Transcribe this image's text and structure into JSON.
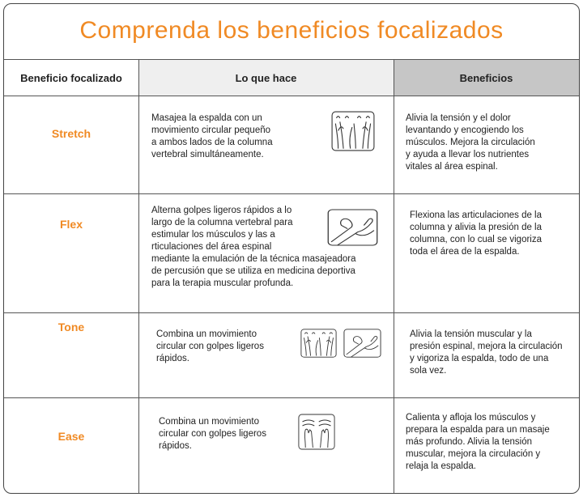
{
  "header": {
    "title": "Comprenda los beneficios focalizados"
  },
  "table": {
    "columns": [
      "Beneficio focalizado",
      "Lo que hace",
      "Beneficios"
    ],
    "rows": [
      {
        "benefit": "Stretch",
        "does": [
          "Masajea la espalda con un",
          "movimiento circular pequeño",
          "a ambos lados de la columna",
          "vertebral simultáneamente."
        ],
        "benefits": [
          "Alivia la tensión y el dolor",
          "levantando y encogiendo los",
          "músculos. Mejora la circulación",
          "y ayuda a llevar los nutrientes",
          "vitales al área espinal."
        ]
      },
      {
        "benefit": "Flex",
        "does": [
          "Alterna golpes ligeros rápidos a lo",
          "largo de la columna vertebral para",
          "estimular los músculos y las a",
          "rticulaciones del área espinal",
          "mediante la emulación de la técnica masajeadora",
          "de percusión que se utiliza en medicina deportiva",
          "para la terapia muscular profunda."
        ],
        "benefits": [
          "Flexiona las articulaciones de la",
          "columna y alivia la presión de la",
          "columna, con lo cual se vigoriza",
          "toda el área de la espalda."
        ]
      },
      {
        "benefit": "Tone",
        "does": [
          "Combina un movimiento",
          "circular con golpes ligeros",
          "rápidos."
        ],
        "benefits": [
          "Alivia la tensión muscular y la",
          "presión espinal, mejora la circulación",
          "y vigoriza la espalda, todo de una",
          "sola vez."
        ]
      },
      {
        "benefit": "Ease",
        "does": [
          "Combina un movimiento",
          "circular con golpes ligeros",
          "rápidos."
        ],
        "benefits": [
          "Calienta y afloja los músculos y",
          "prepara la espalda para un masaje",
          "más profundo. Alivia la tensión",
          "muscular, mejora la circulación y",
          "relaja la espalda."
        ]
      }
    ]
  }
}
